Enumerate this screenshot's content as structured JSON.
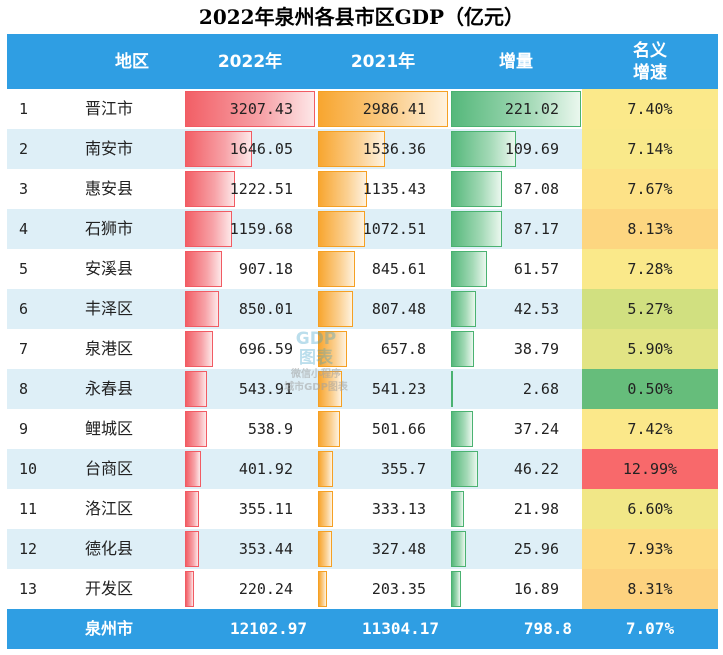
{
  "title": "2022年泉州各县市区GDP（亿元）",
  "headers": {
    "region": "地区",
    "y2022": "2022年",
    "y2021": "2021年",
    "increase": "增量",
    "rate": "名义\n增速"
  },
  "colors": {
    "header_bg": "#2f9ee3",
    "bar_2022": "#f25f66",
    "bar_2021": "#f8a630",
    "bar_increase": "#55b87b"
  },
  "chart_data": {
    "type": "table",
    "columns": [
      "地区",
      "2022年",
      "2021年",
      "增量",
      "名义增速"
    ],
    "rows": [
      {
        "rank": "1",
        "region": "晋江市",
        "y2022": "3207.43",
        "y2021": "2986.41",
        "increase": "221.02",
        "rate": "7.40%",
        "rate_color": "#fbe98a"
      },
      {
        "rank": "2",
        "region": "南安市",
        "y2022": "1646.05",
        "y2021": "1536.36",
        "increase": "109.69",
        "rate": "7.14%",
        "rate_color": "#f9e98a"
      },
      {
        "rank": "3",
        "region": "惠安县",
        "y2022": "1222.51",
        "y2021": "1135.43",
        "increase": "87.08",
        "rate": "7.67%",
        "rate_color": "#fde287"
      },
      {
        "rank": "4",
        "region": "石狮市",
        "y2022": "1159.68",
        "y2021": "1072.51",
        "increase": "87.17",
        "rate": "8.13%",
        "rate_color": "#fdd680"
      },
      {
        "rank": "5",
        "region": "安溪县",
        "y2022": "907.18",
        "y2021": "845.61",
        "increase": "61.57",
        "rate": "7.28%",
        "rate_color": "#fae98a"
      },
      {
        "rank": "6",
        "region": "丰泽区",
        "y2022": "850.01",
        "y2021": "807.48",
        "increase": "42.53",
        "rate": "5.27%",
        "rate_color": "#d1e080"
      },
      {
        "rank": "7",
        "region": "泉港区",
        "y2022": "696.59",
        "y2021": "657.8",
        "increase": "38.79",
        "rate": "5.90%",
        "rate_color": "#e2e484"
      },
      {
        "rank": "8",
        "region": "永春县",
        "y2022": "543.91",
        "y2021": "541.23",
        "increase": "2.68",
        "rate": "0.50%",
        "rate_color": "#66bd7b"
      },
      {
        "rank": "9",
        "region": "鲤城区",
        "y2022": "538.9",
        "y2021": "501.66",
        "increase": "37.24",
        "rate": "7.42%",
        "rate_color": "#fbe88a"
      },
      {
        "rank": "10",
        "region": "台商区",
        "y2022": "401.92",
        "y2021": "355.7",
        "increase": "46.22",
        "rate": "12.99%",
        "rate_color": "#f8696b"
      },
      {
        "rank": "11",
        "region": "洛江区",
        "y2022": "355.11",
        "y2021": "333.13",
        "increase": "21.98",
        "rate": "6.60%",
        "rate_color": "#f1e787"
      },
      {
        "rank": "12",
        "region": "德化县",
        "y2022": "353.44",
        "y2021": "327.48",
        "increase": "25.96",
        "rate": "7.93%",
        "rate_color": "#fddb83"
      },
      {
        "rank": "13",
        "region": "开发区",
        "y2022": "220.24",
        "y2021": "203.35",
        "increase": "16.89",
        "rate": "8.31%",
        "rate_color": "#fdd27f"
      }
    ],
    "total": {
      "region": "泉州市",
      "y2022": "12102.97",
      "y2021": "11304.17",
      "increase": "798.8",
      "rate": "7.07%"
    },
    "bar_max": {
      "y2022": 3207.43,
      "y2021": 2986.41,
      "increase": 221.02
    }
  },
  "watermark": {
    "line1": "GDP",
    "line2": "图表",
    "line3": "微信小程序",
    "line4": "城市GDP图表"
  }
}
